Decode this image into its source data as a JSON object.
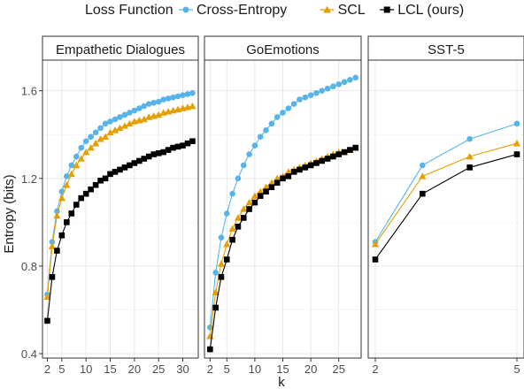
{
  "chart_data": {
    "type": "line",
    "legend": {
      "title": "Loss Function",
      "position": "top",
      "entries": [
        {
          "name": "Cross-Entropy",
          "color": "#56B4E9",
          "marker": "circle"
        },
        {
          "name": "SCL",
          "color": "#E69F00",
          "marker": "triangle"
        },
        {
          "name": "LCL (ours)",
          "color": "#000000",
          "marker": "square"
        }
      ]
    },
    "xlabel": "k",
    "ylabel": "Entropy (bits)",
    "ylim": [
      0.38,
      1.74
    ],
    "yticks": [
      0.4,
      0.8,
      1.2,
      1.6
    ],
    "ytick_labels": [
      "0.4",
      "0.8",
      "1.2",
      "1.6"
    ],
    "grid": true,
    "panels": [
      {
        "title": "Empathetic Dialogues",
        "x": [
          2,
          3,
          4,
          5,
          6,
          7,
          8,
          9,
          10,
          11,
          12,
          13,
          14,
          15,
          16,
          17,
          18,
          19,
          20,
          21,
          22,
          23,
          24,
          25,
          26,
          27,
          28,
          29,
          30,
          31,
          32
        ],
        "xlim": [
          1.0,
          33.2
        ],
        "xticks": [
          2,
          5,
          10,
          15,
          20,
          25,
          30
        ],
        "series": [
          {
            "name": "Cross-Entropy",
            "values": [
              0.67,
              0.91,
              1.05,
              1.14,
              1.21,
              1.26,
              1.3,
              1.34,
              1.37,
              1.39,
              1.41,
              1.43,
              1.45,
              1.46,
              1.47,
              1.48,
              1.49,
              1.5,
              1.51,
              1.52,
              1.53,
              1.54,
              1.545,
              1.55,
              1.56,
              1.565,
              1.57,
              1.575,
              1.58,
              1.585,
              1.59
            ]
          },
          {
            "name": "SCL",
            "values": [
              0.66,
              0.89,
              1.03,
              1.11,
              1.17,
              1.22,
              1.26,
              1.29,
              1.32,
              1.34,
              1.36,
              1.38,
              1.39,
              1.41,
              1.42,
              1.43,
              1.44,
              1.45,
              1.46,
              1.465,
              1.47,
              1.48,
              1.485,
              1.49,
              1.5,
              1.505,
              1.51,
              1.515,
              1.52,
              1.525,
              1.53
            ]
          },
          {
            "name": "LCL (ours)",
            "values": [
              0.55,
              0.75,
              0.87,
              0.94,
              1.0,
              1.04,
              1.08,
              1.11,
              1.13,
              1.15,
              1.17,
              1.19,
              1.2,
              1.22,
              1.23,
              1.24,
              1.25,
              1.26,
              1.27,
              1.28,
              1.29,
              1.3,
              1.31,
              1.315,
              1.32,
              1.33,
              1.34,
              1.345,
              1.35,
              1.36,
              1.37
            ]
          }
        ]
      },
      {
        "title": "GoEmotions",
        "x": [
          2,
          3,
          4,
          5,
          6,
          7,
          8,
          9,
          10,
          11,
          12,
          13,
          14,
          15,
          16,
          17,
          18,
          19,
          20,
          21,
          22,
          23,
          24,
          25,
          26,
          27,
          28
        ],
        "xlim": [
          1.0,
          29.0
        ],
        "xticks": [
          2,
          5,
          10,
          15,
          20,
          25
        ],
        "series": [
          {
            "name": "Cross-Entropy",
            "values": [
              0.52,
              0.77,
              0.93,
              1.04,
              1.13,
              1.2,
              1.26,
              1.31,
              1.35,
              1.39,
              1.42,
              1.45,
              1.48,
              1.5,
              1.52,
              1.54,
              1.56,
              1.57,
              1.58,
              1.59,
              1.6,
              1.61,
              1.62,
              1.63,
              1.64,
              1.65,
              1.66
            ]
          },
          {
            "name": "SCL",
            "values": [
              0.48,
              0.68,
              0.81,
              0.9,
              0.97,
              1.02,
              1.06,
              1.09,
              1.12,
              1.14,
              1.16,
              1.18,
              1.2,
              1.21,
              1.23,
              1.24,
              1.25,
              1.26,
              1.27,
              1.28,
              1.29,
              1.3,
              1.31,
              1.32,
              1.32,
              1.33,
              1.34
            ]
          },
          {
            "name": "LCL (ours)",
            "values": [
              0.42,
              0.61,
              0.75,
              0.83,
              0.92,
              0.98,
              1.02,
              1.06,
              1.09,
              1.12,
              1.14,
              1.16,
              1.18,
              1.2,
              1.21,
              1.23,
              1.24,
              1.25,
              1.26,
              1.27,
              1.28,
              1.29,
              1.3,
              1.31,
              1.32,
              1.33,
              1.34
            ]
          }
        ]
      },
      {
        "title": "SST-5",
        "x": [
          2,
          3,
          4,
          5
        ],
        "xlim": [
          1.85,
          5.15
        ],
        "xticks": [
          2,
          5
        ],
        "series": [
          {
            "name": "Cross-Entropy",
            "values": [
              0.91,
              1.26,
              1.38,
              1.45
            ]
          },
          {
            "name": "SCL",
            "values": [
              0.9,
              1.21,
              1.3,
              1.36
            ]
          },
          {
            "name": "LCL (ours)",
            "values": [
              0.83,
              1.13,
              1.25,
              1.31
            ]
          }
        ]
      }
    ]
  }
}
